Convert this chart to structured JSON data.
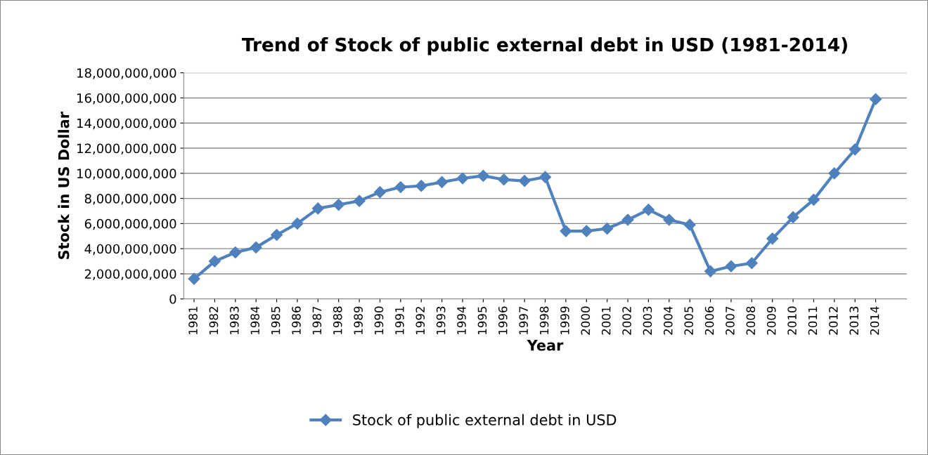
{
  "chart_data": {
    "type": "line",
    "title": "Trend of Stock of public external debt in USD (1981-2014)",
    "xlabel": "Year",
    "ylabel": "Stock in US Dollar",
    "categories": [
      "1981",
      "1982",
      "1983",
      "1984",
      "1985",
      "1986",
      "1987",
      "1988",
      "1989",
      "1990",
      "1991",
      "1992",
      "1993",
      "1994",
      "1995",
      "1996",
      "1997",
      "1998",
      "1999",
      "2000",
      "2001",
      "2002",
      "2003",
      "2004",
      "2005",
      "2006",
      "2007",
      "2008",
      "2009",
      "2010",
      "2011",
      "2012",
      "2013",
      "2014"
    ],
    "series": [
      {
        "name": "Stock of public external debt in USD",
        "color": "#4f81bd",
        "values": [
          1600000000,
          3000000000,
          3700000000,
          4100000000,
          5100000000,
          6000000000,
          7200000000,
          7500000000,
          7800000000,
          8500000000,
          8900000000,
          9000000000,
          9300000000,
          9600000000,
          9800000000,
          9500000000,
          9400000000,
          9700000000,
          5400000000,
          5400000000,
          5600000000,
          6300000000,
          7100000000,
          6300000000,
          5900000000,
          2200000000,
          2600000000,
          2850000000,
          4800000000,
          6500000000,
          7900000000,
          10000000000,
          11900000000,
          15900000000
        ]
      }
    ],
    "ylim": [
      0,
      18000000000
    ],
    "yticks": [
      0,
      {
        "value": 2000000000,
        "label": "2,000,000,000"
      },
      {
        "value": 4000000000,
        "label": "4,000,000,000"
      },
      {
        "value": 6000000000,
        "label": "6,000,000,000"
      },
      {
        "value": 8000000000,
        "label": "8,000,000,000"
      },
      {
        "value": 10000000000,
        "label": "10,000,000,000"
      },
      {
        "value": 12000000000,
        "label": "12,000,000,000"
      },
      {
        "value": 14000000000,
        "label": "14,000,000,000"
      },
      {
        "value": 16000000000,
        "label": "16,000,000,000"
      },
      {
        "value": 18000000000,
        "label": "18,000,000,000"
      }
    ],
    "grid": "y",
    "legend": "bottom",
    "marker": "diamond",
    "line_style": "solid"
  }
}
